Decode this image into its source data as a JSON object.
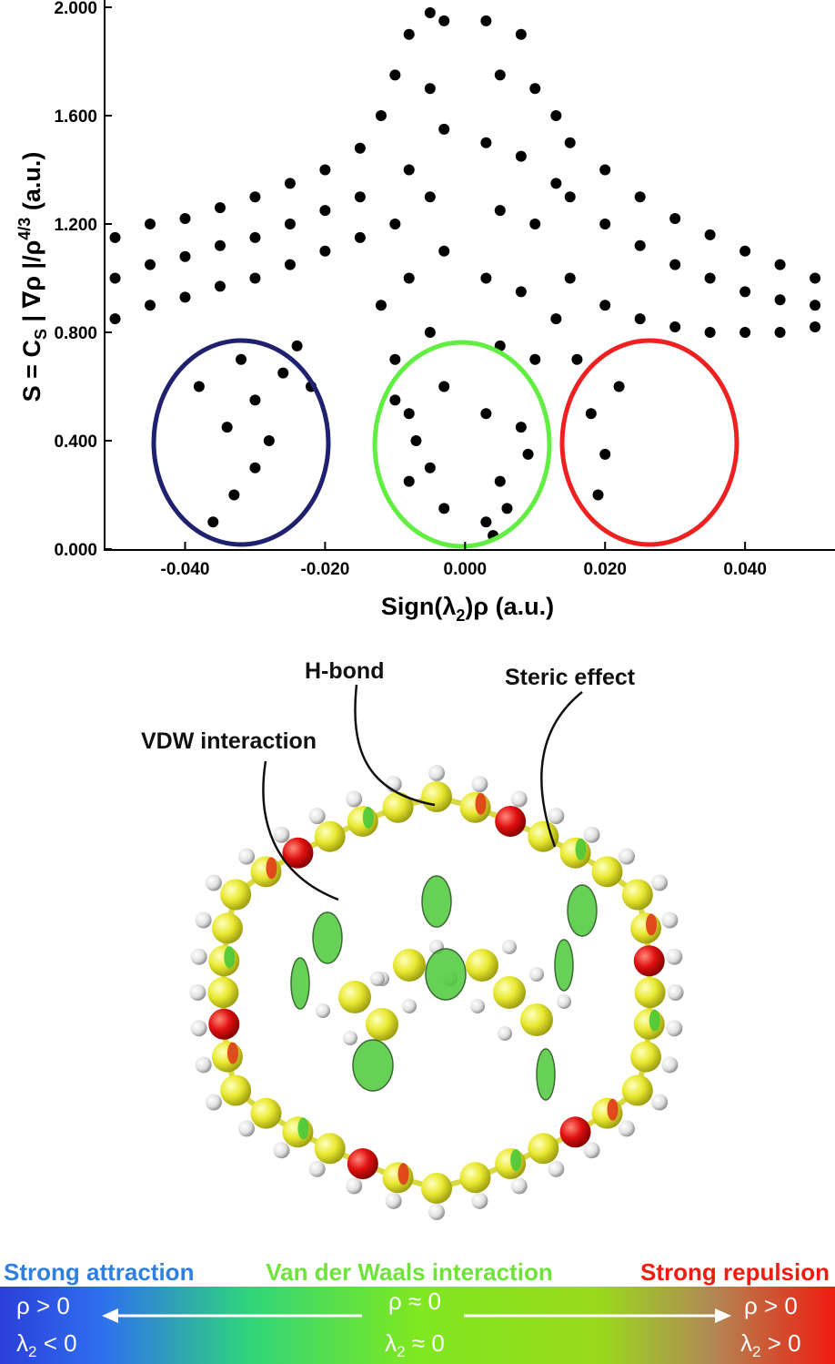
{
  "chart_data": {
    "type": "scatter",
    "x": [
      -0.05,
      -0.05,
      -0.05,
      -0.045,
      -0.045,
      -0.045,
      -0.04,
      -0.04,
      -0.04,
      -0.035,
      -0.035,
      -0.035,
      -0.03,
      -0.03,
      -0.03,
      -0.025,
      -0.025,
      -0.025,
      -0.02,
      -0.02,
      -0.02,
      -0.015,
      -0.015,
      -0.015,
      -0.012,
      -0.012,
      -0.01,
      -0.01,
      -0.01,
      -0.008,
      -0.008,
      -0.008,
      -0.008,
      -0.005,
      -0.005,
      -0.005,
      -0.005,
      -0.005,
      -0.003,
      -0.003,
      -0.003,
      -0.003,
      -0.003,
      0.003,
      0.003,
      0.003,
      0.003,
      0.003,
      0.005,
      0.005,
      0.005,
      0.005,
      0.008,
      0.008,
      0.008,
      0.008,
      0.01,
      0.01,
      0.01,
      0.013,
      0.013,
      0.013,
      0.015,
      0.015,
      0.015,
      0.02,
      0.02,
      0.02,
      0.025,
      0.025,
      0.025,
      0.03,
      0.03,
      0.03,
      0.035,
      0.035,
      0.035,
      0.04,
      0.04,
      0.04,
      0.045,
      0.045,
      0.045,
      0.05,
      0.05,
      0.05,
      -0.036,
      -0.033,
      -0.034,
      -0.03,
      -0.028,
      -0.026,
      -0.038,
      -0.032,
      -0.024,
      -0.022,
      -0.03,
      0.019,
      0.02,
      0.018,
      0.022,
      0.016,
      -0.008,
      -0.007,
      0.006,
      0.009,
      -0.01,
      0.004
    ],
    "y": [
      0.85,
      1.0,
      1.15,
      0.9,
      1.05,
      1.2,
      0.93,
      1.08,
      1.22,
      0.97,
      1.12,
      1.26,
      1.0,
      1.15,
      1.3,
      1.05,
      1.2,
      1.35,
      1.1,
      1.25,
      1.4,
      1.15,
      1.3,
      1.48,
      0.9,
      1.6,
      0.7,
      1.2,
      1.75,
      0.5,
      1.0,
      1.4,
      1.9,
      0.3,
      0.8,
      1.3,
      1.7,
      1.98,
      0.15,
      0.6,
      1.1,
      1.55,
      1.95,
      0.1,
      0.5,
      1.0,
      1.5,
      1.95,
      0.25,
      0.75,
      1.25,
      1.75,
      0.45,
      0.95,
      1.45,
      1.9,
      0.7,
      1.2,
      1.7,
      0.85,
      1.35,
      1.6,
      1.0,
      1.3,
      1.5,
      0.9,
      1.2,
      1.4,
      0.85,
      1.12,
      1.3,
      0.82,
      1.05,
      1.22,
      0.8,
      1.0,
      1.16,
      0.8,
      0.95,
      1.1,
      0.8,
      0.92,
      1.05,
      0.82,
      0.9,
      1.0,
      0.1,
      0.2,
      0.45,
      0.55,
      0.4,
      0.65,
      0.6,
      0.7,
      0.75,
      0.6,
      0.3,
      0.2,
      0.35,
      0.5,
      0.6,
      0.7,
      0.25,
      0.4,
      0.15,
      0.35,
      0.55,
      0.05
    ],
    "color": "#000000",
    "xlim": [
      -0.0515,
      0.0522
    ],
    "ylim": [
      0,
      2
    ],
    "xticks": [
      {
        "value": -0.04,
        "label": "-0.040"
      },
      {
        "value": -0.02,
        "label": "-0.020"
      },
      {
        "value": 0,
        "label": "0.000"
      },
      {
        "value": 0.02,
        "label": "0.020"
      },
      {
        "value": 0.04,
        "label": "0.040"
      }
    ],
    "yticks": [
      {
        "value": 0,
        "label": "0.000"
      },
      {
        "value": 0.4,
        "label": "0.400"
      },
      {
        "value": 0.8,
        "label": "0.800"
      },
      {
        "value": 1.2,
        "label": "1.200"
      },
      {
        "value": 1.6,
        "label": "1.600"
      },
      {
        "value": 2,
        "label": "2.000"
      }
    ],
    "xlabel": {
      "text": "Sign(λ",
      "sub": "2",
      "end": ")ρ (a.u.)"
    },
    "ylabel": {
      "text": "S = C",
      "sub": "S",
      "mid": " | ∇ρ |/ρ",
      "sup": "4/3",
      "end": " (a.u.)"
    }
  },
  "figure": {
    "labels": {
      "h_bond": "H-bond",
      "steric": "Steric effect",
      "vdw": "VDW interaction"
    },
    "colorbar": {
      "left_title": "Strong attraction",
      "middle_title": "Van der Waals interaction",
      "right_title": "Strong repulsion",
      "left_rho": "ρ > 0",
      "left_lambda": "λ",
      "left_sub": "2",
      "left_rest": " < 0",
      "middle_rho": "ρ ≈ 0",
      "middle_lambda": "λ",
      "middle_sub": "2",
      "middle_rest": " ≈ 0",
      "right_rho": "ρ > 0",
      "right_lambda": "λ",
      "right_sub": "2",
      "right_rest": " > 0"
    }
  }
}
